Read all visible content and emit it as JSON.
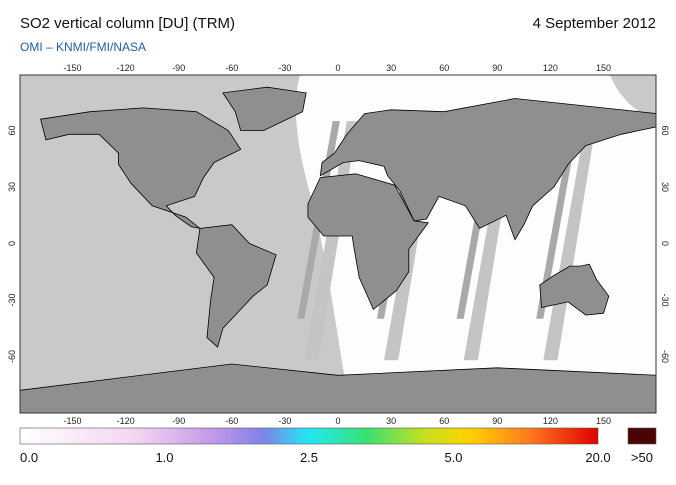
{
  "header": {
    "title": "SO2 vertical column [DU] (TRM)",
    "date": "4 September 2012",
    "subtitle": "OMI  –  KNMI/FMI/NASA"
  },
  "map": {
    "lon_ticks": [
      -150,
      -120,
      -90,
      -60,
      -30,
      0,
      30,
      60,
      90,
      120,
      150
    ],
    "lat_ticks": [
      60,
      30,
      0,
      -30,
      -60
    ]
  },
  "colorbar": {
    "labels": [
      "0.0",
      "1.0",
      "2.5",
      "5.0",
      "20.0"
    ],
    "overflow_label": ">50"
  }
}
